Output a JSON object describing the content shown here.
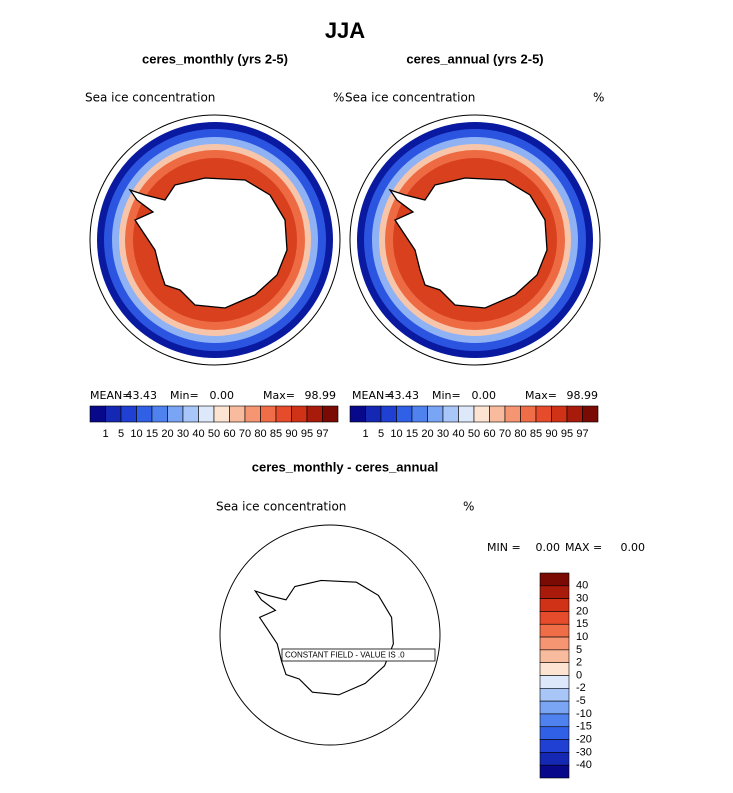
{
  "title": "JJA",
  "panels": [
    {
      "title": "ceres_monthly (yrs 2-5)",
      "variable": "Sea ice concentration",
      "units": "%",
      "stats": {
        "mean_label": "MEAN=",
        "mean": "43.43",
        "min_label": "Min=",
        "min": "0.00",
        "max_label": "Max=",
        "max": "98.99"
      }
    },
    {
      "title": "ceres_annual (yrs 2-5)",
      "variable": "Sea ice concentration",
      "units": "%",
      "stats": {
        "mean_label": "MEAN=",
        "mean": "43.43",
        "min_label": "Min=",
        "min": "0.00",
        "max_label": "Max=",
        "max": "98.99"
      }
    }
  ],
  "colorbar": {
    "levels": [
      1,
      5,
      10,
      15,
      20,
      30,
      40,
      50,
      60,
      70,
      80,
      85,
      90,
      95,
      97
    ],
    "colors": [
      "#08088a",
      "#1428b4",
      "#1f40d2",
      "#3060e6",
      "#4f82ef",
      "#7aa4f4",
      "#a8c6f8",
      "#dde9fa",
      "#fde3d2",
      "#f9bb9e",
      "#f59572",
      "#ef6d47",
      "#e64b2b",
      "#cf3216",
      "#a81a0a",
      "#790a04"
    ]
  },
  "difference": {
    "title": "ceres_monthly - ceres_annual",
    "variable": "Sea ice concentration",
    "units": "%",
    "min_label": "MIN =",
    "min": "0.00",
    "max_label": "MAX =",
    "max": "0.00",
    "note": "CONSTANT FIELD - VALUE IS .0",
    "colorbar": {
      "levels": [
        40,
        30,
        20,
        15,
        10,
        5,
        2,
        0,
        -2,
        -5,
        -10,
        -15,
        -20,
        -30,
        -40
      ],
      "colors": [
        "#790a04",
        "#a81a0a",
        "#cf3216",
        "#e64b2b",
        "#ef6d47",
        "#f59572",
        "#f9bb9e",
        "#fde3d2",
        "#dde9fa",
        "#a8c6f8",
        "#7aa4f4",
        "#4f82ef",
        "#3060e6",
        "#1f40d2",
        "#1428b4",
        "#08088a"
      ]
    }
  }
}
